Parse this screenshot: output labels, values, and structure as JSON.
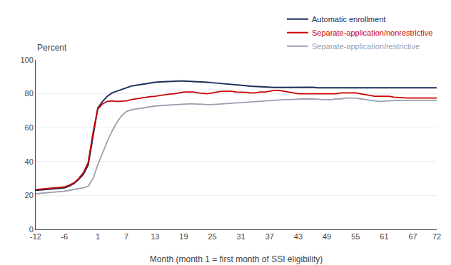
{
  "chart_data": {
    "type": "line",
    "xlabel": "Month (month 1 = first month of SSI eligibility)",
    "ylabel": "Percent",
    "x": [
      -12,
      -11,
      -10,
      -9,
      -8,
      -7,
      -6,
      -5,
      -4,
      -3,
      -2,
      -1,
      0,
      1,
      2,
      3,
      4,
      5,
      6,
      7,
      8,
      9,
      10,
      11,
      12,
      13,
      14,
      15,
      16,
      17,
      18,
      19,
      20,
      21,
      22,
      23,
      24,
      25,
      26,
      27,
      28,
      29,
      30,
      31,
      32,
      33,
      34,
      35,
      36,
      37,
      38,
      39,
      40,
      41,
      42,
      43,
      44,
      45,
      46,
      47,
      48,
      49,
      50,
      51,
      52,
      53,
      54,
      55,
      56,
      57,
      58,
      59,
      60,
      61,
      62,
      63,
      64,
      65,
      66,
      67,
      68,
      69,
      70,
      71,
      72
    ],
    "series": [
      {
        "name": "Automatic enrollment",
        "color": "#1a2f5a",
        "values": [
          23.0,
          23.2,
          23.4,
          23.6,
          23.8,
          24.0,
          24.5,
          25.5,
          27.0,
          29.5,
          32.5,
          38.0,
          55.0,
          71.5,
          75.5,
          78.5,
          80.5,
          81.5,
          82.5,
          83.5,
          84.5,
          85.0,
          85.5,
          86.0,
          86.5,
          86.8,
          87.0,
          87.2,
          87.3,
          87.5,
          87.5,
          87.5,
          87.4,
          87.3,
          87.2,
          87.0,
          86.8,
          86.5,
          86.3,
          86.0,
          85.8,
          85.5,
          85.3,
          85.0,
          84.8,
          84.5,
          84.3,
          84.0,
          83.8,
          83.8,
          83.7,
          83.7,
          83.7,
          83.8,
          83.8,
          84.0,
          84.0,
          84.0,
          83.8,
          83.5,
          83.5,
          83.5,
          83.5,
          83.5,
          83.5,
          83.5,
          83.5,
          83.5,
          83.5,
          83.5,
          83.5,
          83.5,
          83.5,
          83.5,
          83.5,
          83.5,
          83.5,
          83.5,
          83.5,
          83.5,
          83.5,
          83.5,
          83.5,
          83.5,
          83.5
        ]
      },
      {
        "name": "Separate-application/nonrestrictive",
        "color": "#cc0000",
        "values": [
          23.5,
          23.7,
          23.9,
          24.1,
          24.3,
          24.5,
          25.0,
          26.0,
          27.5,
          30.0,
          33.5,
          39.5,
          57.0,
          71.0,
          74.0,
          75.5,
          75.8,
          75.5,
          75.5,
          75.8,
          76.5,
          77.0,
          77.5,
          78.0,
          78.3,
          78.5,
          79.0,
          79.5,
          79.8,
          80.0,
          80.5,
          81.0,
          81.0,
          81.0,
          80.5,
          80.3,
          80.0,
          80.5,
          81.0,
          81.5,
          81.5,
          81.5,
          81.0,
          81.0,
          80.8,
          80.5,
          80.5,
          81.0,
          81.0,
          81.5,
          82.0,
          82.0,
          81.5,
          81.0,
          80.5,
          80.0,
          80.0,
          80.0,
          80.0,
          80.0,
          80.0,
          80.0,
          80.0,
          80.0,
          80.5,
          80.5,
          80.5,
          80.5,
          80.0,
          79.5,
          79.0,
          78.5,
          78.5,
          78.5,
          78.5,
          78.0,
          77.8,
          77.5,
          77.5,
          77.5,
          77.5,
          77.5,
          77.5,
          77.5,
          77.5
        ]
      },
      {
        "name": "Separate-application/restrictive",
        "color": "#9aa0b0",
        "values": [
          21.0,
          21.2,
          21.4,
          21.6,
          21.8,
          22.0,
          22.5,
          23.0,
          23.5,
          24.0,
          24.5,
          25.5,
          30.0,
          38.0,
          45.0,
          52.0,
          58.0,
          63.0,
          67.0,
          69.5,
          70.5,
          71.0,
          71.5,
          72.0,
          72.5,
          72.8,
          73.0,
          73.2,
          73.3,
          73.5,
          73.5,
          73.8,
          74.0,
          74.0,
          74.0,
          73.8,
          73.5,
          73.5,
          73.8,
          74.0,
          74.2,
          74.5,
          74.5,
          74.8,
          75.0,
          75.3,
          75.3,
          75.5,
          75.8,
          76.0,
          76.0,
          76.2,
          76.5,
          76.5,
          76.5,
          76.8,
          77.0,
          77.0,
          77.0,
          76.8,
          76.5,
          76.5,
          76.5,
          77.0,
          77.0,
          77.5,
          77.5,
          77.5,
          77.0,
          76.5,
          76.0,
          75.8,
          75.5,
          75.5,
          75.8,
          76.0,
          76.0,
          76.0,
          76.0,
          76.0,
          76.0,
          76.0,
          76.0,
          76.0,
          76.0
        ]
      }
    ],
    "xlim": [
      -12,
      72
    ],
    "ylim": [
      0,
      100
    ],
    "xticks": [
      -12,
      -6,
      1,
      7,
      13,
      19,
      25,
      31,
      37,
      43,
      49,
      55,
      61,
      67,
      72
    ],
    "yticks": [
      0,
      20,
      40,
      60,
      80,
      100
    ],
    "grid": "y",
    "legend": "upper right"
  }
}
